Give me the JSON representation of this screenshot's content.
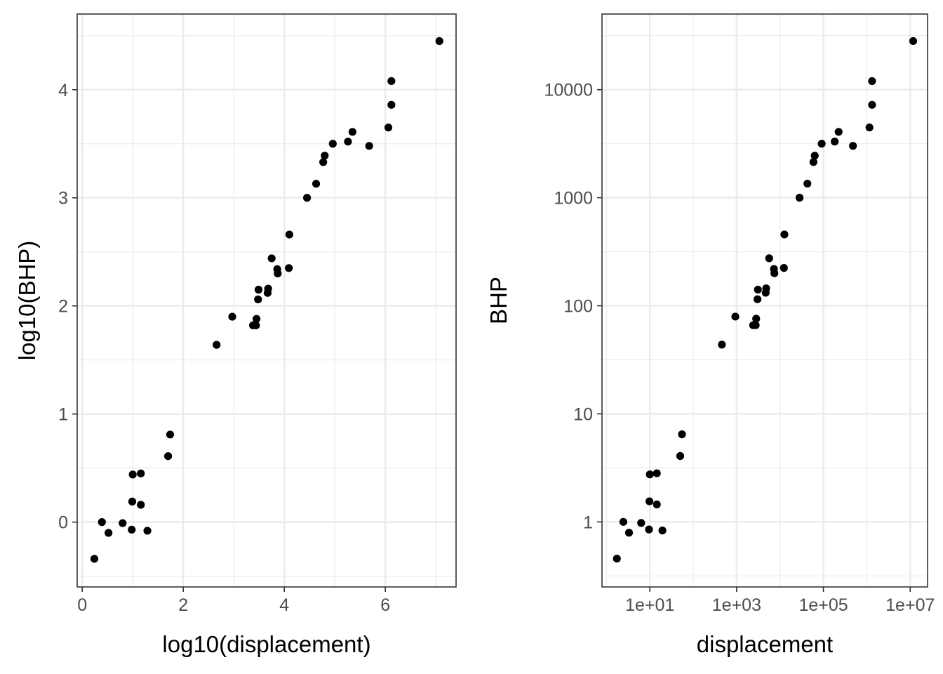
{
  "chart_data": [
    {
      "type": "scatter",
      "xlabel": "log10(displacement)",
      "ylabel": "log10(BHP)",
      "xlim": [
        -0.1,
        7.4
      ],
      "ylim": [
        -0.6,
        4.7
      ],
      "xticks": [
        0,
        2,
        4,
        6
      ],
      "xtick_labels": [
        "0",
        "2",
        "4",
        "6"
      ],
      "yticks": [
        0,
        1,
        2,
        3,
        4
      ],
      "ytick_labels": [
        "0",
        "1",
        "2",
        "3",
        "4"
      ],
      "grid": true,
      "points": [
        {
          "x": 0.24,
          "y": -0.34
        },
        {
          "x": 0.39,
          "y": 0.0
        },
        {
          "x": 0.52,
          "y": -0.1
        },
        {
          "x": 0.8,
          "y": -0.01
        },
        {
          "x": 0.98,
          "y": -0.07
        },
        {
          "x": 0.99,
          "y": 0.19
        },
        {
          "x": 1.0,
          "y": 0.44
        },
        {
          "x": 1.16,
          "y": 0.45
        },
        {
          "x": 1.16,
          "y": 0.16
        },
        {
          "x": 1.29,
          "y": -0.08
        },
        {
          "x": 1.7,
          "y": 0.61
        },
        {
          "x": 1.74,
          "y": 0.81
        },
        {
          "x": 2.66,
          "y": 1.64
        },
        {
          "x": 2.97,
          "y": 1.9
        },
        {
          "x": 3.38,
          "y": 1.82
        },
        {
          "x": 3.44,
          "y": 1.82
        },
        {
          "x": 3.45,
          "y": 1.88
        },
        {
          "x": 3.48,
          "y": 2.06
        },
        {
          "x": 3.49,
          "y": 2.15
        },
        {
          "x": 3.67,
          "y": 2.12
        },
        {
          "x": 3.68,
          "y": 2.16
        },
        {
          "x": 3.75,
          "y": 2.44
        },
        {
          "x": 3.86,
          "y": 2.34
        },
        {
          "x": 3.87,
          "y": 2.3
        },
        {
          "x": 4.09,
          "y": 2.35
        },
        {
          "x": 4.1,
          "y": 2.66
        },
        {
          "x": 4.45,
          "y": 3.0
        },
        {
          "x": 4.63,
          "y": 3.13
        },
        {
          "x": 4.77,
          "y": 3.33
        },
        {
          "x": 4.8,
          "y": 3.39
        },
        {
          "x": 4.96,
          "y": 3.5
        },
        {
          "x": 5.26,
          "y": 3.52
        },
        {
          "x": 5.35,
          "y": 3.61
        },
        {
          "x": 5.68,
          "y": 3.48
        },
        {
          "x": 6.06,
          "y": 3.65
        },
        {
          "x": 6.12,
          "y": 3.86
        },
        {
          "x": 6.12,
          "y": 4.08
        },
        {
          "x": 7.07,
          "y": 4.45
        }
      ]
    },
    {
      "type": "scatter",
      "xlabel": "displacement",
      "ylabel": "BHP",
      "xscale": "log",
      "yscale": "log",
      "xlim": [
        0.79,
        25100000
      ],
      "ylim": [
        0.25,
        50100
      ],
      "xticks": [
        10,
        1000,
        100000,
        10000000
      ],
      "xtick_labels": [
        "1e+01",
        "1e+03",
        "1e+05",
        "1e+07"
      ],
      "yticks": [
        1,
        10,
        100,
        1000,
        10000
      ],
      "ytick_labels": [
        "1",
        "10",
        "100",
        "1000",
        "10000"
      ],
      "grid": true,
      "points": [
        {
          "x": 1.74,
          "y": 0.457
        },
        {
          "x": 2.45,
          "y": 1.0
        },
        {
          "x": 3.31,
          "y": 0.794
        },
        {
          "x": 6.31,
          "y": 0.977
        },
        {
          "x": 9.55,
          "y": 0.851
        },
        {
          "x": 9.77,
          "y": 1.55
        },
        {
          "x": 10.0,
          "y": 2.75
        },
        {
          "x": 14.5,
          "y": 2.82
        },
        {
          "x": 14.5,
          "y": 1.45
        },
        {
          "x": 19.5,
          "y": 0.832
        },
        {
          "x": 50.1,
          "y": 4.07
        },
        {
          "x": 55.0,
          "y": 6.46
        },
        {
          "x": 457,
          "y": 43.7
        },
        {
          "x": 933,
          "y": 79.4
        },
        {
          "x": 2400,
          "y": 66.1
        },
        {
          "x": 2750,
          "y": 66.1
        },
        {
          "x": 2820,
          "y": 75.9
        },
        {
          "x": 3020,
          "y": 115
        },
        {
          "x": 3090,
          "y": 141
        },
        {
          "x": 4680,
          "y": 132
        },
        {
          "x": 4790,
          "y": 145
        },
        {
          "x": 5620,
          "y": 275
        },
        {
          "x": 7240,
          "y": 219
        },
        {
          "x": 7410,
          "y": 200
        },
        {
          "x": 12300,
          "y": 224
        },
        {
          "x": 12600,
          "y": 457
        },
        {
          "x": 28200,
          "y": 1000
        },
        {
          "x": 42700,
          "y": 1350
        },
        {
          "x": 58900,
          "y": 2140
        },
        {
          "x": 63100,
          "y": 2450
        },
        {
          "x": 91200,
          "y": 3160
        },
        {
          "x": 182000,
          "y": 3310
        },
        {
          "x": 224000,
          "y": 4070
        },
        {
          "x": 479000,
          "y": 3020
        },
        {
          "x": 1150000,
          "y": 4470
        },
        {
          "x": 1320000,
          "y": 7240
        },
        {
          "x": 1320000,
          "y": 12000
        },
        {
          "x": 11700000,
          "y": 28200
        }
      ]
    }
  ]
}
